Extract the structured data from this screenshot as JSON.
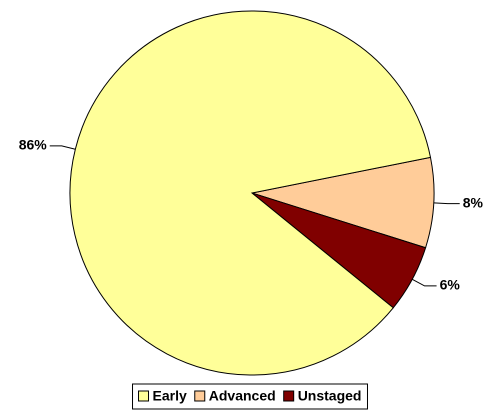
{
  "chart_data": {
    "type": "pie",
    "categories": [
      "Early",
      "Advanced",
      "Unstaged"
    ],
    "values": [
      86,
      8,
      6
    ],
    "value_labels": [
      "86%",
      "8%",
      "6%"
    ],
    "colors": [
      "#ffff99",
      "#ffcc99",
      "#800000"
    ],
    "legend": "bottom"
  }
}
